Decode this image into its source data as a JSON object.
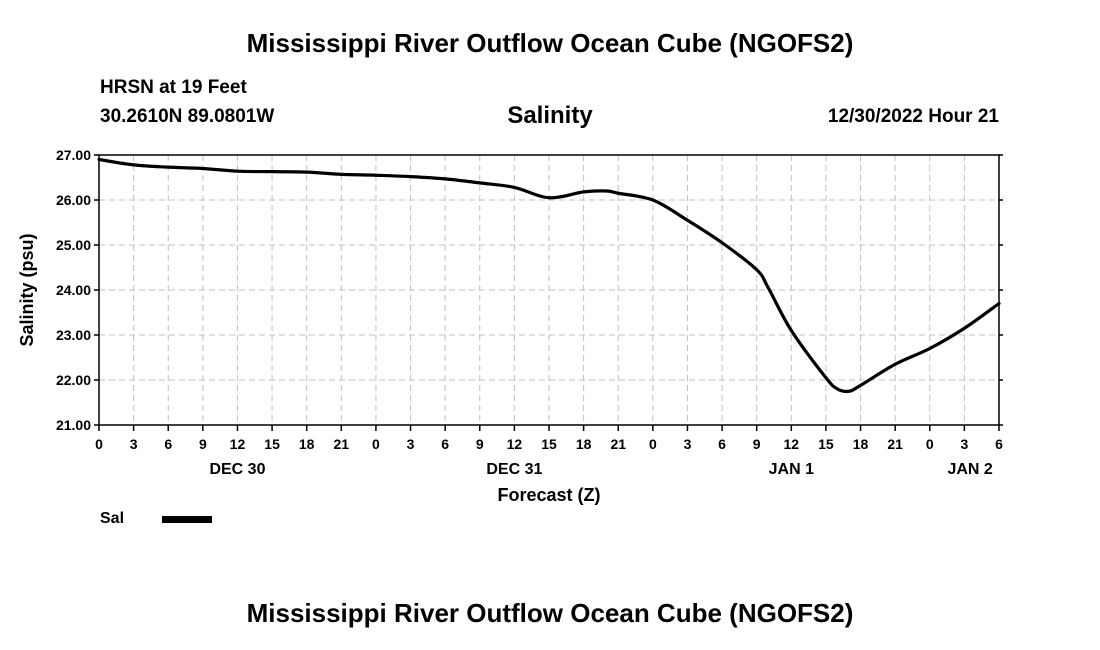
{
  "header": {
    "title": "Mississippi River Outflow Ocean Cube (NGOFS2)",
    "station": "HRSN at 19 Feet",
    "coords": "30.2610N  89.0801W",
    "subtitle": "Salinity",
    "timestamp": "12/30/2022 Hour 21"
  },
  "footer": {
    "title": "Mississippi River Outflow Ocean Cube (NGOFS2)"
  },
  "legend": {
    "label": "Sal",
    "color": "#000000"
  },
  "chart_data": {
    "type": "line",
    "title": "Salinity",
    "xlabel": "Forecast (Z)",
    "ylabel": "Salinity (psu)",
    "ylim": [
      21.0,
      27.0
    ],
    "xlim_hours": [
      0,
      78
    ],
    "yticks": [
      "21.00",
      "22.00",
      "23.00",
      "24.00",
      "25.00",
      "26.00",
      "27.00"
    ],
    "xtick_labels": [
      "0",
      "3",
      "6",
      "9",
      "12",
      "15",
      "18",
      "21",
      "0",
      "3",
      "6",
      "9",
      "12",
      "15",
      "18",
      "21",
      "0",
      "3",
      "6",
      "9",
      "12",
      "15",
      "18",
      "21",
      "0",
      "3",
      "6"
    ],
    "date_labels": [
      {
        "label": "DEC 30",
        "hour": 12
      },
      {
        "label": "DEC 31",
        "hour": 36
      },
      {
        "label": "JAN 1",
        "hour": 60
      },
      {
        "label": "JAN 2",
        "hour": 75.5
      }
    ],
    "grid": true,
    "series": [
      {
        "name": "Sal",
        "color": "#000000",
        "x": [
          0,
          3,
          6,
          9,
          12,
          15,
          18,
          21,
          24,
          27,
          30,
          33,
          36,
          39,
          42,
          44,
          45,
          48,
          51,
          54,
          57,
          58,
          60,
          63,
          64,
          65,
          66,
          69,
          72,
          75,
          78
        ],
        "y": [
          26.9,
          26.78,
          26.73,
          26.7,
          26.64,
          26.63,
          26.62,
          26.57,
          26.55,
          26.52,
          26.47,
          26.38,
          26.28,
          26.05,
          26.18,
          26.2,
          26.15,
          26.0,
          25.55,
          25.05,
          24.45,
          24.05,
          23.1,
          22.05,
          21.8,
          21.75,
          21.88,
          22.35,
          22.7,
          23.15,
          23.7
        ]
      }
    ]
  }
}
